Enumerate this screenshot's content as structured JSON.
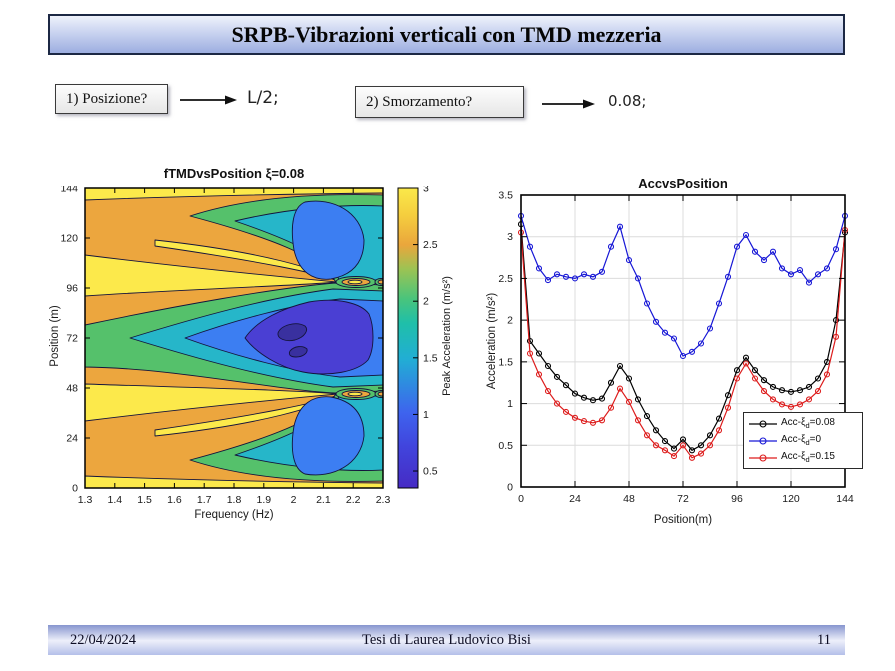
{
  "slide": {
    "title": "SRPB-Vibrazioni verticali con TMD mezzeria"
  },
  "questions": [
    {
      "label": "1) Posizione?",
      "answer": "L/2;"
    },
    {
      "label": "2) Smorzamento?",
      "answer": "0.08;"
    }
  ],
  "footer": {
    "date": "22/04/2024",
    "center": "Tesi di Laurea Ludovico Bisi",
    "page": "11"
  },
  "chart_data": [
    {
      "type": "heatmap",
      "subtype": "filled-contour",
      "title": "fTMDvsPosition ξ=0.08",
      "xlabel": "Frequency (Hz)",
      "ylabel": "Position (m)",
      "xlim": [
        1.3,
        2.3
      ],
      "ylim": [
        0,
        144
      ],
      "x_ticks": [
        "1.3",
        "1.4",
        "1.5",
        "1.6",
        "1.7",
        "1.8",
        "1.9",
        "2",
        "2.1",
        "2.2",
        "2.3"
      ],
      "y_ticks": [
        "0",
        "24",
        "48",
        "72",
        "96",
        "120",
        "144"
      ],
      "colorbar": {
        "label": "Peak Acceleration (m/s²)",
        "ticks": [
          "0.5",
          "1",
          "1.5",
          "2",
          "2.5",
          "3"
        ],
        "range": [
          0.35,
          3
        ]
      },
      "bands": [
        {
          "range": "<0.5",
          "color": "#39309f"
        },
        {
          "range": "0.5-1",
          "color": "#4a3fd3"
        },
        {
          "range": "1-1.5",
          "color": "#3c7ef2"
        },
        {
          "range": "1.5-2",
          "color": "#26b6c9"
        },
        {
          "range": "2-2.5",
          "color": "#55c16b"
        },
        {
          "range": "2.5-3",
          "color": "#eca63e"
        },
        {
          "range": "≈3",
          "color": "#fce94b"
        }
      ]
    },
    {
      "type": "line",
      "title": "AccvsPosition",
      "xlabel": "Position(m)",
      "ylabel": "Acceleration (m/s²)",
      "xlim": [
        0,
        144
      ],
      "ylim": [
        0,
        3.5
      ],
      "grid": true,
      "legend_position": "bottom-right",
      "x_ticks": [
        "0",
        "24",
        "48",
        "72",
        "96",
        "120",
        "144"
      ],
      "y_ticks": [
        "0",
        "0.5",
        "1",
        "1.5",
        "2",
        "2.5",
        "3",
        "3.5"
      ],
      "x": [
        0,
        4,
        8,
        12,
        16,
        20,
        24,
        28,
        32,
        36,
        40,
        44,
        48,
        52,
        56,
        60,
        64,
        68,
        72,
        76,
        80,
        84,
        88,
        92,
        96,
        100,
        104,
        108,
        112,
        116,
        120,
        124,
        128,
        132,
        136,
        140,
        144
      ],
      "series": [
        {
          "label_pre": "Acc-ξ",
          "label_sub": "d",
          "label_post": "=0.08",
          "color": "#000000",
          "marker": "circle",
          "values": [
            3.15,
            1.75,
            1.6,
            1.45,
            1.32,
            1.22,
            1.12,
            1.07,
            1.04,
            1.06,
            1.25,
            1.45,
            1.3,
            1.05,
            0.85,
            0.68,
            0.55,
            0.46,
            0.57,
            0.44,
            0.5,
            0.62,
            0.82,
            1.1,
            1.4,
            1.55,
            1.4,
            1.28,
            1.2,
            1.16,
            1.14,
            1.16,
            1.2,
            1.3,
            1.5,
            2.0,
            3.05
          ]
        },
        {
          "label_pre": "Acc-ξ",
          "label_sub": "d",
          "label_post": "=0",
          "color": "#1717d6",
          "marker": "circle",
          "values": [
            3.25,
            2.88,
            2.62,
            2.48,
            2.55,
            2.52,
            2.5,
            2.55,
            2.52,
            2.58,
            2.88,
            3.12,
            2.72,
            2.5,
            2.2,
            1.98,
            1.85,
            1.78,
            1.57,
            1.62,
            1.72,
            1.9,
            2.2,
            2.52,
            2.88,
            3.02,
            2.82,
            2.72,
            2.82,
            2.62,
            2.55,
            2.6,
            2.45,
            2.55,
            2.62,
            2.85,
            3.25
          ]
        },
        {
          "label_pre": "Acc-ξ",
          "label_sub": "d",
          "label_post": "=0.15",
          "color": "#dd1c1c",
          "marker": "circle",
          "values": [
            3.05,
            1.6,
            1.35,
            1.15,
            1.0,
            0.9,
            0.83,
            0.79,
            0.77,
            0.8,
            0.95,
            1.18,
            1.02,
            0.8,
            0.62,
            0.5,
            0.44,
            0.37,
            0.5,
            0.35,
            0.4,
            0.5,
            0.68,
            0.95,
            1.3,
            1.48,
            1.3,
            1.15,
            1.05,
            0.99,
            0.96,
            0.99,
            1.05,
            1.15,
            1.35,
            1.8,
            3.08
          ]
        }
      ]
    }
  ]
}
